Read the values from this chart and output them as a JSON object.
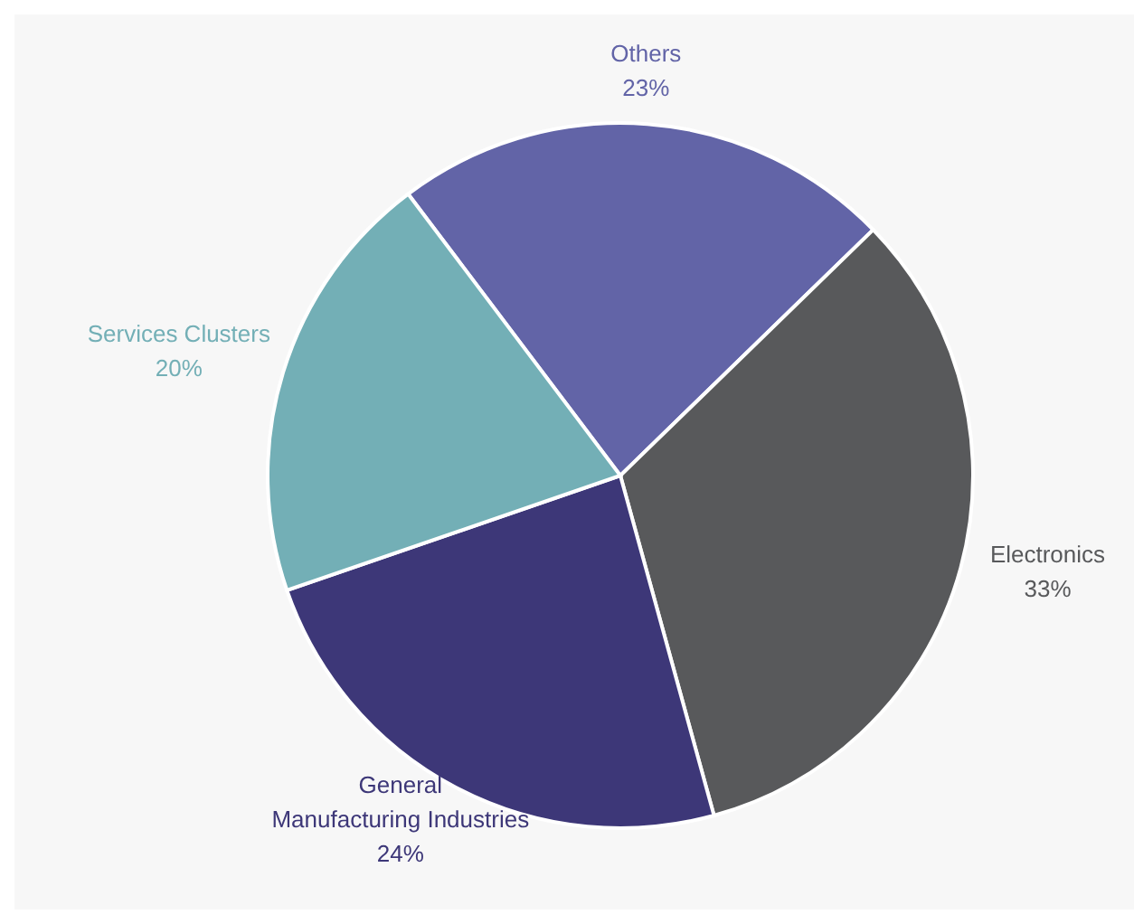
{
  "chart_data": {
    "type": "pie",
    "categories": [
      "Others",
      "Electronics",
      "General Manufacturing Industries",
      "Services Clusters"
    ],
    "values": [
      23,
      33,
      24,
      20
    ],
    "value_labels": [
      "23%",
      "33%",
      "24%",
      "20%"
    ],
    "colors": [
      "#6264a7",
      "#58595b",
      "#3d3778",
      "#73afb6"
    ],
    "legend": false
  }
}
